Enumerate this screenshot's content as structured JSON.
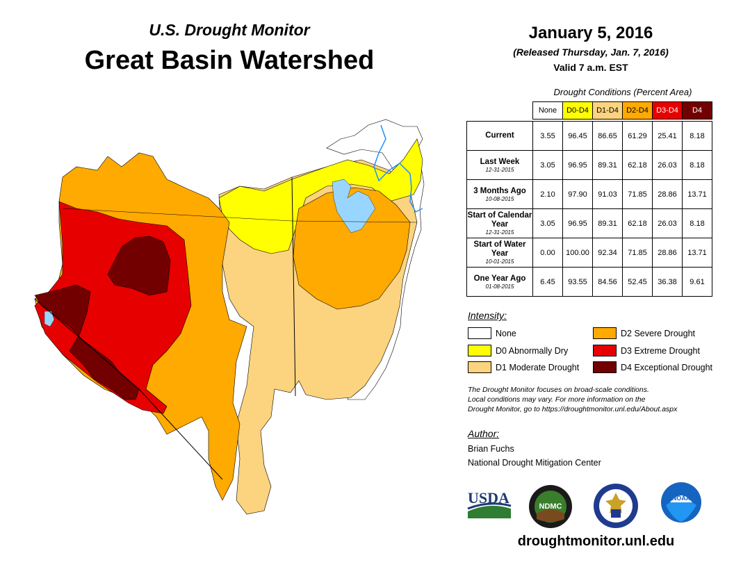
{
  "header": {
    "subtitle": "U.S. Drought Monitor",
    "title": "Great Basin Watershed",
    "date": "January 5, 2016",
    "released": "(Released Thursday, Jan. 7, 2016)",
    "valid": "Valid 7 a.m. EST"
  },
  "table": {
    "caption": "Drought Conditions (Percent Area)",
    "columns": [
      {
        "label": "None",
        "color": "#ffffff"
      },
      {
        "label": "D0-D4",
        "color": "#ffff00"
      },
      {
        "label": "D1-D4",
        "color": "#fcd37f"
      },
      {
        "label": "D2-D4",
        "color": "#ffaa00"
      },
      {
        "label": "D3-D4",
        "color": "#e60000"
      },
      {
        "label": "D4",
        "color": "#730000"
      }
    ],
    "rows": [
      {
        "label": "Current",
        "date": "",
        "values": [
          "3.55",
          "96.45",
          "86.65",
          "61.29",
          "25.41",
          "8.18"
        ]
      },
      {
        "label": "Last Week",
        "date": "12-31-2015",
        "values": [
          "3.05",
          "96.95",
          "89.31",
          "62.18",
          "26.03",
          "8.18"
        ]
      },
      {
        "label": "3 Months Ago",
        "date": "10-08-2015",
        "values": [
          "2.10",
          "97.90",
          "91.03",
          "71.85",
          "28.86",
          "13.71"
        ]
      },
      {
        "label": "Start of Calendar Year",
        "date": "12-31-2015",
        "values": [
          "3.05",
          "96.95",
          "89.31",
          "62.18",
          "26.03",
          "8.18"
        ]
      },
      {
        "label": "Start of Water Year",
        "date": "10-01-2015",
        "values": [
          "0.00",
          "100.00",
          "92.34",
          "71.85",
          "28.86",
          "13.71"
        ]
      },
      {
        "label": "One Year Ago",
        "date": "01-08-2015",
        "values": [
          "6.45",
          "93.55",
          "84.56",
          "52.45",
          "36.38",
          "9.61"
        ]
      }
    ]
  },
  "legend": {
    "title": "Intensity:",
    "items": [
      {
        "label": "None",
        "color": "#ffffff"
      },
      {
        "label": "D0 Abnormally Dry",
        "color": "#ffff00"
      },
      {
        "label": "D1 Moderate Drought",
        "color": "#fcd37f"
      },
      {
        "label": "D2 Severe Drought",
        "color": "#ffaa00"
      },
      {
        "label": "D3 Extreme Drought",
        "color": "#e60000"
      },
      {
        "label": "D4 Exceptional Drought",
        "color": "#730000"
      }
    ]
  },
  "note": {
    "line1": "The Drought Monitor focuses on broad-scale conditions.",
    "line2": "Local conditions may vary. For more information on the",
    "line3": "Drought Monitor, go to https://droughtmonitor.unl.edu/About.aspx"
  },
  "author": {
    "title": "Author:",
    "name": "Brian Fuchs",
    "org": "National Drought Mitigation Center"
  },
  "logos": {
    "usda": "USDA",
    "ndmc": "NDMC",
    "noaa": "NOAA"
  },
  "footer": {
    "url": "droughtmonitor.unl.edu"
  }
}
